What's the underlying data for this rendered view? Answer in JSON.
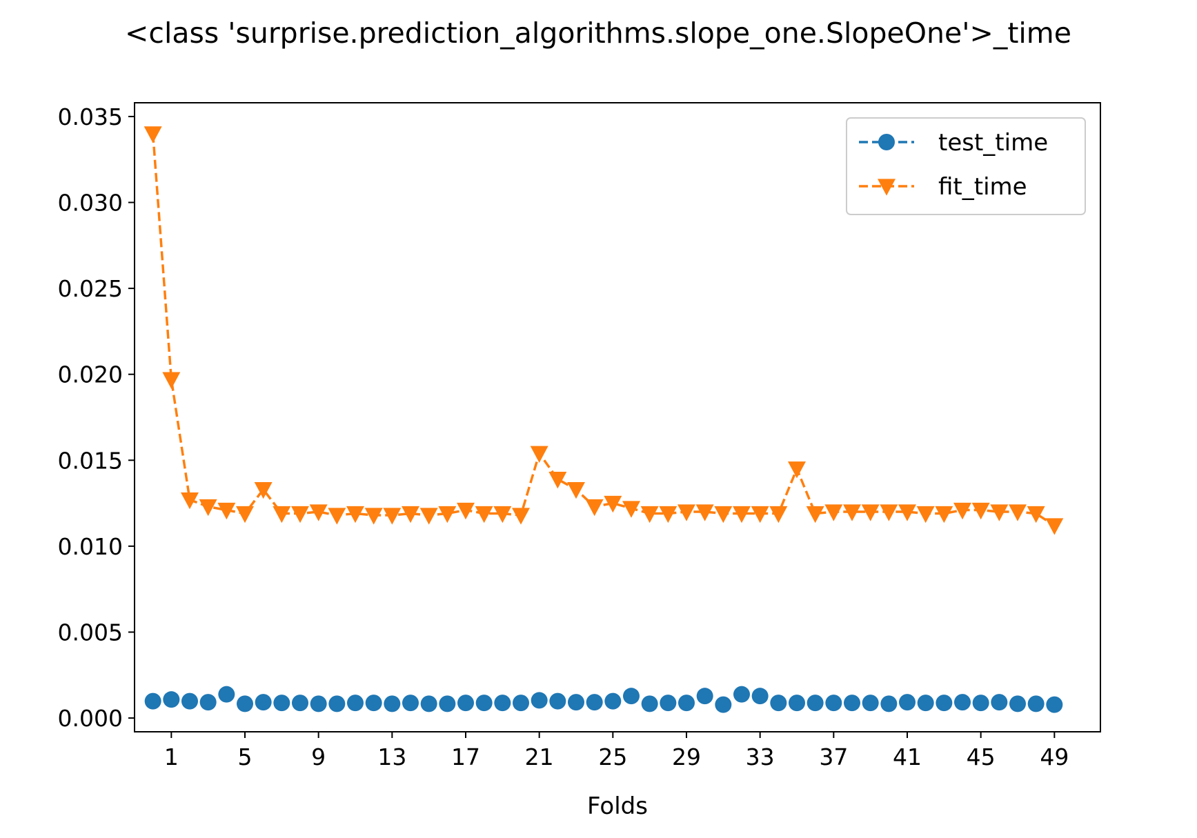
{
  "chart_data": {
    "type": "line",
    "title": "<class 'surprise.prediction_algorithms.slope_one.SlopeOne'>_time",
    "xlabel": "Folds",
    "ylabel": "",
    "x": [
      0,
      1,
      2,
      3,
      4,
      5,
      6,
      7,
      8,
      9,
      10,
      11,
      12,
      13,
      14,
      15,
      16,
      17,
      18,
      19,
      20,
      21,
      22,
      23,
      24,
      25,
      26,
      27,
      28,
      29,
      30,
      31,
      32,
      33,
      34,
      35,
      36,
      37,
      38,
      39,
      40,
      41,
      42,
      43,
      44,
      45,
      46,
      47,
      48,
      49
    ],
    "xticks": [
      1,
      5,
      9,
      13,
      17,
      21,
      25,
      29,
      33,
      37,
      41,
      45,
      49
    ],
    "xtick_labels": [
      "1",
      "5",
      "9",
      "13",
      "17",
      "21",
      "25",
      "29",
      "33",
      "37",
      "41",
      "45",
      "49"
    ],
    "xlim": [
      -1.0,
      51.5
    ],
    "yticks": [
      0.0,
      0.005,
      0.01,
      0.015,
      0.02,
      0.025,
      0.03,
      0.035
    ],
    "ytick_labels": [
      "0.000",
      "0.005",
      "0.010",
      "0.015",
      "0.020",
      "0.025",
      "0.030",
      "0.035"
    ],
    "ylim": [
      -0.0008,
      0.0358
    ],
    "grid": false,
    "legend_position": "top-right",
    "series": [
      {
        "name": "test_time",
        "color": "#1f77b4",
        "marker": "circle",
        "linestyle": "none",
        "values": [
          0.00098,
          0.00108,
          0.00098,
          0.00092,
          0.00138,
          0.00083,
          0.00092,
          0.00088,
          0.00088,
          0.00083,
          0.00083,
          0.00088,
          0.00088,
          0.00083,
          0.00088,
          0.00083,
          0.00083,
          0.00088,
          0.00088,
          0.00088,
          0.00088,
          0.00103,
          0.00098,
          0.00092,
          0.00092,
          0.00098,
          0.00128,
          0.00083,
          0.00088,
          0.00088,
          0.00128,
          0.00078,
          0.00138,
          0.00128,
          0.00088,
          0.00088,
          0.00088,
          0.00088,
          0.00088,
          0.00088,
          0.00083,
          0.00092,
          0.00088,
          0.00088,
          0.00092,
          0.00088,
          0.00092,
          0.00083,
          0.00083,
          0.00078
        ]
      },
      {
        "name": "fit_time",
        "color": "#ff7f0e",
        "marker": "triangle-down",
        "linestyle": "dashed",
        "values": [
          0.034,
          0.0197,
          0.0127,
          0.0123,
          0.0121,
          0.0119,
          0.0133,
          0.0119,
          0.0119,
          0.012,
          0.0118,
          0.0119,
          0.0118,
          0.0118,
          0.0119,
          0.0118,
          0.0119,
          0.0121,
          0.0119,
          0.0119,
          0.0118,
          0.0154,
          0.0139,
          0.0133,
          0.0123,
          0.0125,
          0.0122,
          0.0119,
          0.0119,
          0.012,
          0.012,
          0.0119,
          0.0119,
          0.0119,
          0.0119,
          0.0145,
          0.0119,
          0.012,
          0.012,
          0.012,
          0.012,
          0.012,
          0.0119,
          0.0119,
          0.0121,
          0.0121,
          0.012,
          0.012,
          0.0119,
          0.0112
        ]
      }
    ]
  }
}
